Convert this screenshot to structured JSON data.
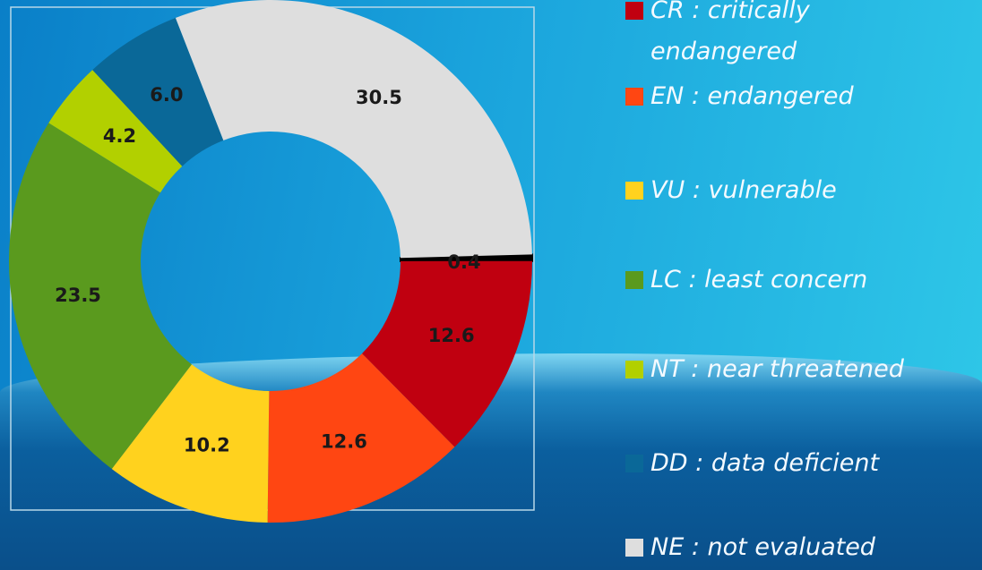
{
  "chart_data": {
    "type": "donut",
    "categories": [
      null,
      "CR : critically endangered",
      "EN : endangered",
      "VU : vulnerable",
      "LC : least concern",
      "NT : near threatened",
      "DD : data deficient",
      "NE : not evaluated"
    ],
    "values": [
      0.4,
      12.6,
      12.6,
      10.2,
      23.5,
      4.2,
      6.0,
      30.5
    ],
    "value_labels": [
      "0.4",
      "12.6",
      "12.6",
      "10.2",
      "23.5",
      "4.2",
      "6.0",
      "30.5"
    ],
    "colors": [
      "#000000",
      "#c00010",
      "#ff4612",
      "#ffd21e",
      "#5a9a1e",
      "#b2d000",
      "#0a6898",
      "#dedede"
    ]
  }
}
